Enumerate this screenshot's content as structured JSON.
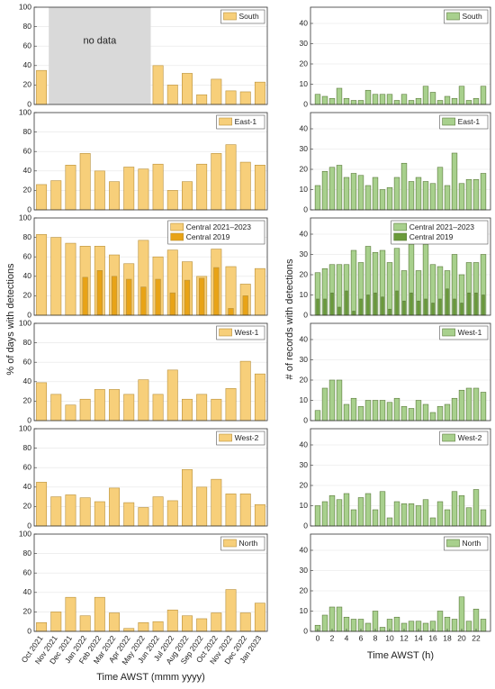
{
  "chart_data": [
    {
      "type": "bar",
      "ylabel": "% of days with detections",
      "annotation": "no data",
      "legend": "upper right",
      "grid": true,
      "ylim": [
        0,
        100
      ],
      "yticks": [
        0,
        20,
        40,
        60,
        80,
        100
      ],
      "series": [
        {
          "name": "South",
          "color": "#f7cf7a",
          "values": [
            35,
            null,
            null,
            null,
            null,
            null,
            null,
            null,
            40,
            20,
            32,
            10,
            26,
            14,
            13,
            23
          ]
        }
      ]
    },
    {
      "type": "bar",
      "legend": "upper right",
      "grid": true,
      "ylim": [
        0,
        100
      ],
      "yticks": [
        0,
        20,
        40,
        60,
        80,
        100
      ],
      "series": [
        {
          "name": "East-1",
          "color": "#f7cf7a",
          "values": [
            26,
            30,
            46,
            58,
            40,
            29,
            44,
            42,
            47,
            20,
            29,
            47,
            58,
            67,
            49,
            46
          ]
        }
      ]
    },
    {
      "type": "bar",
      "legend": "upper right",
      "grid": true,
      "ylim": [
        0,
        100
      ],
      "yticks": [
        0,
        20,
        40,
        60,
        80,
        100
      ],
      "series": [
        {
          "name": "Central 2021–2023",
          "color": "#f7cf7a",
          "values": [
            83,
            80,
            74,
            71,
            71,
            62,
            53,
            77,
            60,
            67,
            55,
            40,
            68,
            50,
            32,
            48
          ]
        },
        {
          "name": "Central 2019",
          "color": "#e8a317",
          "values": [
            null,
            null,
            null,
            39,
            46,
            40,
            37,
            29,
            37,
            23,
            36,
            38,
            49,
            7,
            20,
            null
          ]
        }
      ]
    },
    {
      "type": "bar",
      "legend": "upper right",
      "grid": true,
      "ylim": [
        0,
        100
      ],
      "yticks": [
        0,
        20,
        40,
        60,
        80,
        100
      ],
      "series": [
        {
          "name": "West-1",
          "color": "#f7cf7a",
          "values": [
            39,
            27,
            16,
            22,
            32,
            32,
            27,
            42,
            27,
            52,
            22,
            27,
            22,
            33,
            61,
            48
          ]
        }
      ]
    },
    {
      "type": "bar",
      "legend": "upper right",
      "grid": true,
      "ylim": [
        0,
        100
      ],
      "yticks": [
        0,
        20,
        40,
        60,
        80,
        100
      ],
      "series": [
        {
          "name": "West-2",
          "color": "#f7cf7a",
          "values": [
            45,
            30,
            32,
            29,
            25,
            39,
            24,
            19,
            30,
            26,
            58,
            40,
            48,
            33,
            33,
            22
          ]
        }
      ]
    },
    {
      "type": "bar",
      "xlabel": "Time AWST (mmm yyyy)",
      "legend": "upper right",
      "grid": true,
      "ylim": [
        0,
        100
      ],
      "yticks": [
        0,
        20,
        40,
        60,
        80,
        100
      ],
      "categories": [
        "Oct 2021",
        "Nov 2021",
        "Dec 2021",
        "Jan 2022",
        "Feb 2022",
        "Mar 2022",
        "Apr 2022",
        "May 2022",
        "Jun 2022",
        "Jul 2022",
        "Aug 2022",
        "Sep 2022",
        "Oct 2022",
        "Nov 2022",
        "Dec 2022",
        "Jan 2023"
      ],
      "series": [
        {
          "name": "North",
          "color": "#f7cf7a",
          "values": [
            9,
            20,
            35,
            16,
            35,
            19,
            3,
            9,
            10,
            22,
            16,
            13,
            19,
            43,
            19,
            29
          ]
        }
      ]
    },
    {
      "type": "bar",
      "ylabel": "# of records with detections",
      "legend": "upper right",
      "grid": true,
      "ylim": [
        0,
        48
      ],
      "yticks": [
        0,
        10,
        20,
        30,
        40
      ],
      "series": [
        {
          "name": "South",
          "color": "#a8d08d",
          "values": [
            5,
            4,
            3,
            8,
            3,
            2,
            2,
            7,
            5,
            5,
            5,
            2,
            5,
            2,
            3,
            9,
            6,
            2,
            4,
            3,
            9,
            2,
            3,
            9
          ]
        }
      ]
    },
    {
      "type": "bar",
      "legend": "upper right",
      "grid": true,
      "ylim": [
        0,
        48
      ],
      "yticks": [
        0,
        10,
        20,
        30,
        40
      ],
      "series": [
        {
          "name": "East-1",
          "color": "#a8d08d",
          "values": [
            12,
            19,
            21,
            22,
            16,
            18,
            17,
            12,
            16,
            10,
            11,
            16,
            23,
            14,
            16,
            14,
            13,
            21,
            12,
            28,
            13,
            15,
            15,
            18
          ]
        }
      ]
    },
    {
      "type": "bar",
      "legend": "upper right",
      "grid": true,
      "ylim": [
        0,
        48
      ],
      "yticks": [
        0,
        10,
        20,
        30,
        40
      ],
      "series": [
        {
          "name": "Central 2021–2023",
          "color": "#a8d08d",
          "values": [
            21,
            23,
            25,
            25,
            25,
            32,
            26,
            34,
            31,
            32,
            26,
            33,
            22,
            35,
            22,
            35,
            25,
            24,
            22,
            30,
            20,
            26,
            26,
            30
          ]
        },
        {
          "name": "Central 2019",
          "color": "#6a9a3a",
          "values": [
            8,
            8,
            11,
            4,
            12,
            2,
            8,
            10,
            11,
            9,
            3,
            12,
            7,
            11,
            7,
            8,
            6,
            8,
            13,
            8,
            6,
            11,
            11,
            10
          ]
        }
      ]
    },
    {
      "type": "bar",
      "legend": "upper right",
      "grid": true,
      "ylim": [
        0,
        48
      ],
      "yticks": [
        0,
        10,
        20,
        30,
        40
      ],
      "series": [
        {
          "name": "West-1",
          "color": "#a8d08d",
          "values": [
            5,
            16,
            20,
            20,
            8,
            11,
            7,
            10,
            10,
            10,
            9,
            11,
            7,
            6,
            10,
            8,
            4,
            7,
            8,
            11,
            15,
            16,
            16,
            14
          ]
        }
      ]
    },
    {
      "type": "bar",
      "legend": "upper right",
      "grid": true,
      "ylim": [
        0,
        48
      ],
      "yticks": [
        0,
        10,
        20,
        30,
        40
      ],
      "series": [
        {
          "name": "West-2",
          "color": "#a8d08d",
          "values": [
            10,
            12,
            15,
            13,
            16,
            8,
            14,
            16,
            8,
            17,
            4,
            12,
            11,
            11,
            10,
            13,
            4,
            12,
            8,
            17,
            15,
            9,
            18,
            8
          ]
        }
      ]
    },
    {
      "type": "bar",
      "xlabel": "Time AWST (h)",
      "legend": "upper right",
      "grid": true,
      "ylim": [
        0,
        48
      ],
      "yticks": [
        0,
        10,
        20,
        30,
        40
      ],
      "x": [
        0,
        1,
        2,
        3,
        4,
        5,
        6,
        7,
        8,
        9,
        10,
        11,
        12,
        13,
        14,
        15,
        16,
        17,
        18,
        19,
        20,
        21,
        22,
        23
      ],
      "xlim": [
        -1,
        24
      ],
      "xticks": [
        0,
        2,
        4,
        6,
        8,
        10,
        12,
        14,
        16,
        18,
        20,
        22
      ],
      "series": [
        {
          "name": "North",
          "color": "#a8d08d",
          "values": [
            3,
            8,
            12,
            12,
            7,
            6,
            6,
            4,
            10,
            2,
            6,
            7,
            4,
            5,
            5,
            4,
            5,
            10,
            7,
            6,
            17,
            5,
            11,
            6
          ]
        }
      ]
    }
  ]
}
